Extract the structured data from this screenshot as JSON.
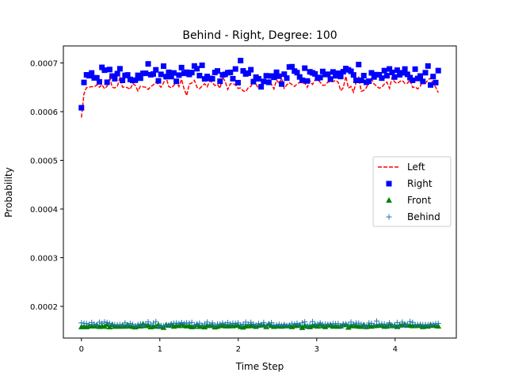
{
  "chart_data": {
    "type": "scatter",
    "title": "Behind - Right, Degree: 100",
    "xlabel": "Time Step",
    "ylabel": "Probability",
    "xlim": [
      -0.23,
      4.78
    ],
    "ylim": [
      0.000135,
      0.000735
    ],
    "xticks": [
      0,
      1,
      2,
      3,
      4
    ],
    "xtick_labels": [
      "0",
      "1",
      "2",
      "3",
      "4"
    ],
    "yticks": [
      0.0002,
      0.0003,
      0.0004,
      0.0005,
      0.0006,
      0.0007
    ],
    "ytick_labels": [
      "0.0002",
      "0.0003",
      "0.0004",
      "0.0005",
      "0.0006",
      "0.0007"
    ],
    "grid": false,
    "legend_position": "center-right",
    "x_range": [
      0,
      4.55
    ],
    "num_points": 140,
    "series": [
      {
        "name": "Left",
        "style": "dashed-line",
        "color": "#ff0000",
        "first_value": 0.000588,
        "level": 0.000655,
        "noise": 1.2e-05,
        "seed": 11
      },
      {
        "name": "Right",
        "style": "square",
        "color": "#0000ff",
        "first_value": 0.000608,
        "level": 0.000677,
        "noise": 1.5e-05,
        "seed": 23
      },
      {
        "name": "Front",
        "style": "triangle",
        "color": "#008000",
        "first_value": 0.000158,
        "level": 0.00016,
        "noise": 2.5e-06,
        "seed": 37
      },
      {
        "name": "Behind",
        "style": "plus",
        "color": "#1f77b4",
        "first_value": 0.000166,
        "level": 0.000164,
        "noise": 3.5e-06,
        "seed": 51
      }
    ]
  }
}
